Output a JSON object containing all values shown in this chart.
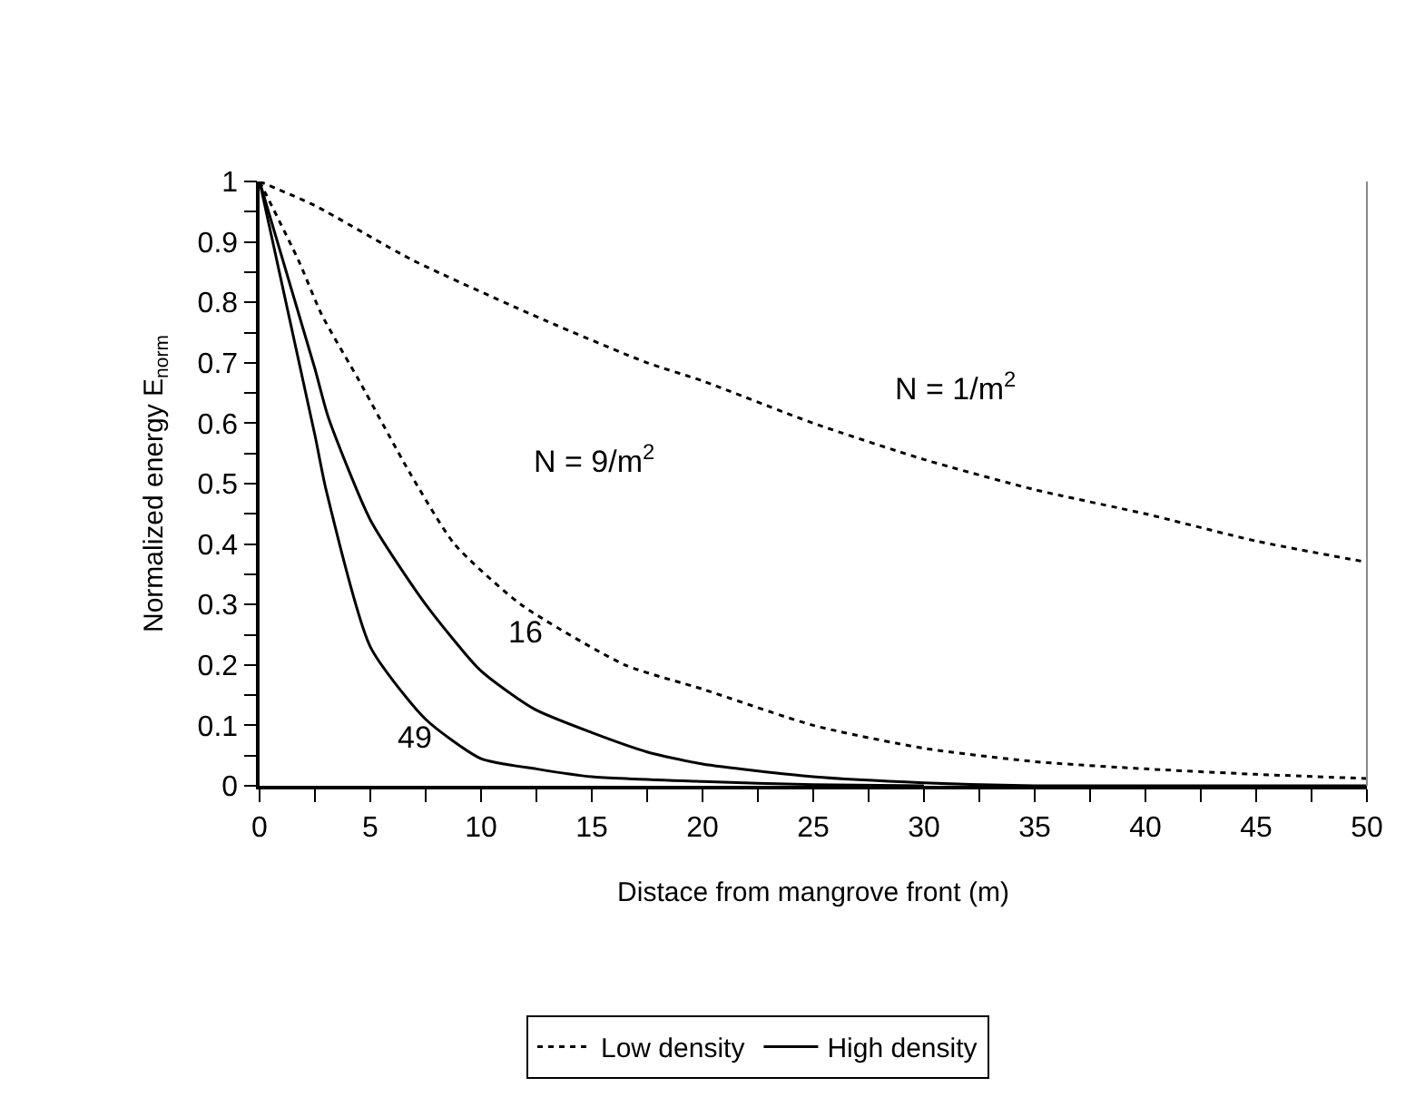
{
  "chart_data": {
    "type": "line",
    "xlabel": "Distace from mangrove front (m)",
    "ylabel": "Normalized energy E$_{norm}$",
    "series": [
      {
        "name": "Low density",
        "color": "#000000",
        "line_style": "dotted",
        "x": [
          0,
          2.5,
          6.9,
          12.9,
          17.5,
          20,
          25,
          30,
          35,
          40,
          45,
          50
        ],
        "values": [
          1,
          0.96,
          0.87,
          0.77,
          0.7,
          0.67,
          0.6,
          0.54,
          0.49,
          0.45,
          0.405,
          0.37
        ]
      },
      {
        "color": "#000000",
        "line_style": "dotted",
        "x": [
          0,
          1.75,
          2.8,
          4.5,
          6.75,
          8.8,
          11.8,
          16.5,
          20,
          25,
          30,
          35,
          40,
          45,
          50
        ],
        "values": [
          1,
          0.87,
          0.78,
          0.67,
          0.52,
          0.4,
          0.3,
          0.2,
          0.16,
          0.1,
          0.062,
          0.04,
          0.028,
          0.019,
          0.012
        ]
      },
      {
        "name": "High density",
        "color": "#000000",
        "line_style": "solid",
        "x": [
          0,
          2.5,
          3.1,
          5,
          7.5,
          10,
          12.4,
          15,
          17.5,
          20,
          25,
          30,
          35,
          50
        ],
        "values": [
          1,
          0.69,
          0.61,
          0.44,
          0.3,
          0.19,
          0.127,
          0.088,
          0.056,
          0.036,
          0.015,
          0.005,
          0,
          0
        ]
      },
      {
        "color": "#000000",
        "line_style": "solid",
        "x": [
          0,
          2.5,
          3,
          5,
          7.5,
          10,
          12.5,
          15,
          20,
          25,
          30
        ],
        "values": [
          1,
          0.58,
          0.49,
          0.23,
          0.11,
          0.045,
          0.028,
          0.015,
          0.007,
          0.002,
          0
        ]
      }
    ],
    "annotations": [
      "N = 1/m$^{2}$",
      "N = 9/m$^{2}$",
      "16",
      "49"
    ],
    "xlim": [
      0,
      50
    ],
    "xticks": [
      0,
      {
        "value": 2.5,
        "label": null
      },
      5,
      {
        "value": 7.5,
        "label": null
      },
      10,
      {
        "value": 12.5,
        "label": null
      },
      15,
      {
        "value": 17.5,
        "label": null
      },
      20,
      {
        "value": 22.5,
        "label": null
      },
      25,
      {
        "value": 27.5,
        "label": null
      },
      30,
      {
        "value": 32.5,
        "label": null
      },
      35,
      {
        "value": 37.5,
        "label": null
      },
      40,
      {
        "value": 42.5,
        "label": null
      },
      45,
      {
        "value": 47.5,
        "label": null
      },
      50
    ],
    "ylim": [
      0,
      1
    ],
    "yticks": [
      0,
      {
        "value": 0.05,
        "label": null
      },
      0.1,
      {
        "value": 0.15,
        "label": null
      },
      0.2,
      {
        "value": 0.25,
        "label": null
      },
      0.3,
      {
        "value": 0.35,
        "label": null
      },
      0.4,
      {
        "value": 0.45,
        "label": null
      },
      0.5,
      {
        "value": 0.55,
        "label": null
      },
      0.6,
      {
        "value": 0.65,
        "label": null
      },
      0.7,
      {
        "value": 0.75,
        "label": null
      },
      0.8,
      {
        "value": 0.85,
        "label": null
      },
      0.9,
      {
        "value": 0.95,
        "label": null
      },
      1
    ],
    "legend": "bottom",
    "marker": "none"
  }
}
